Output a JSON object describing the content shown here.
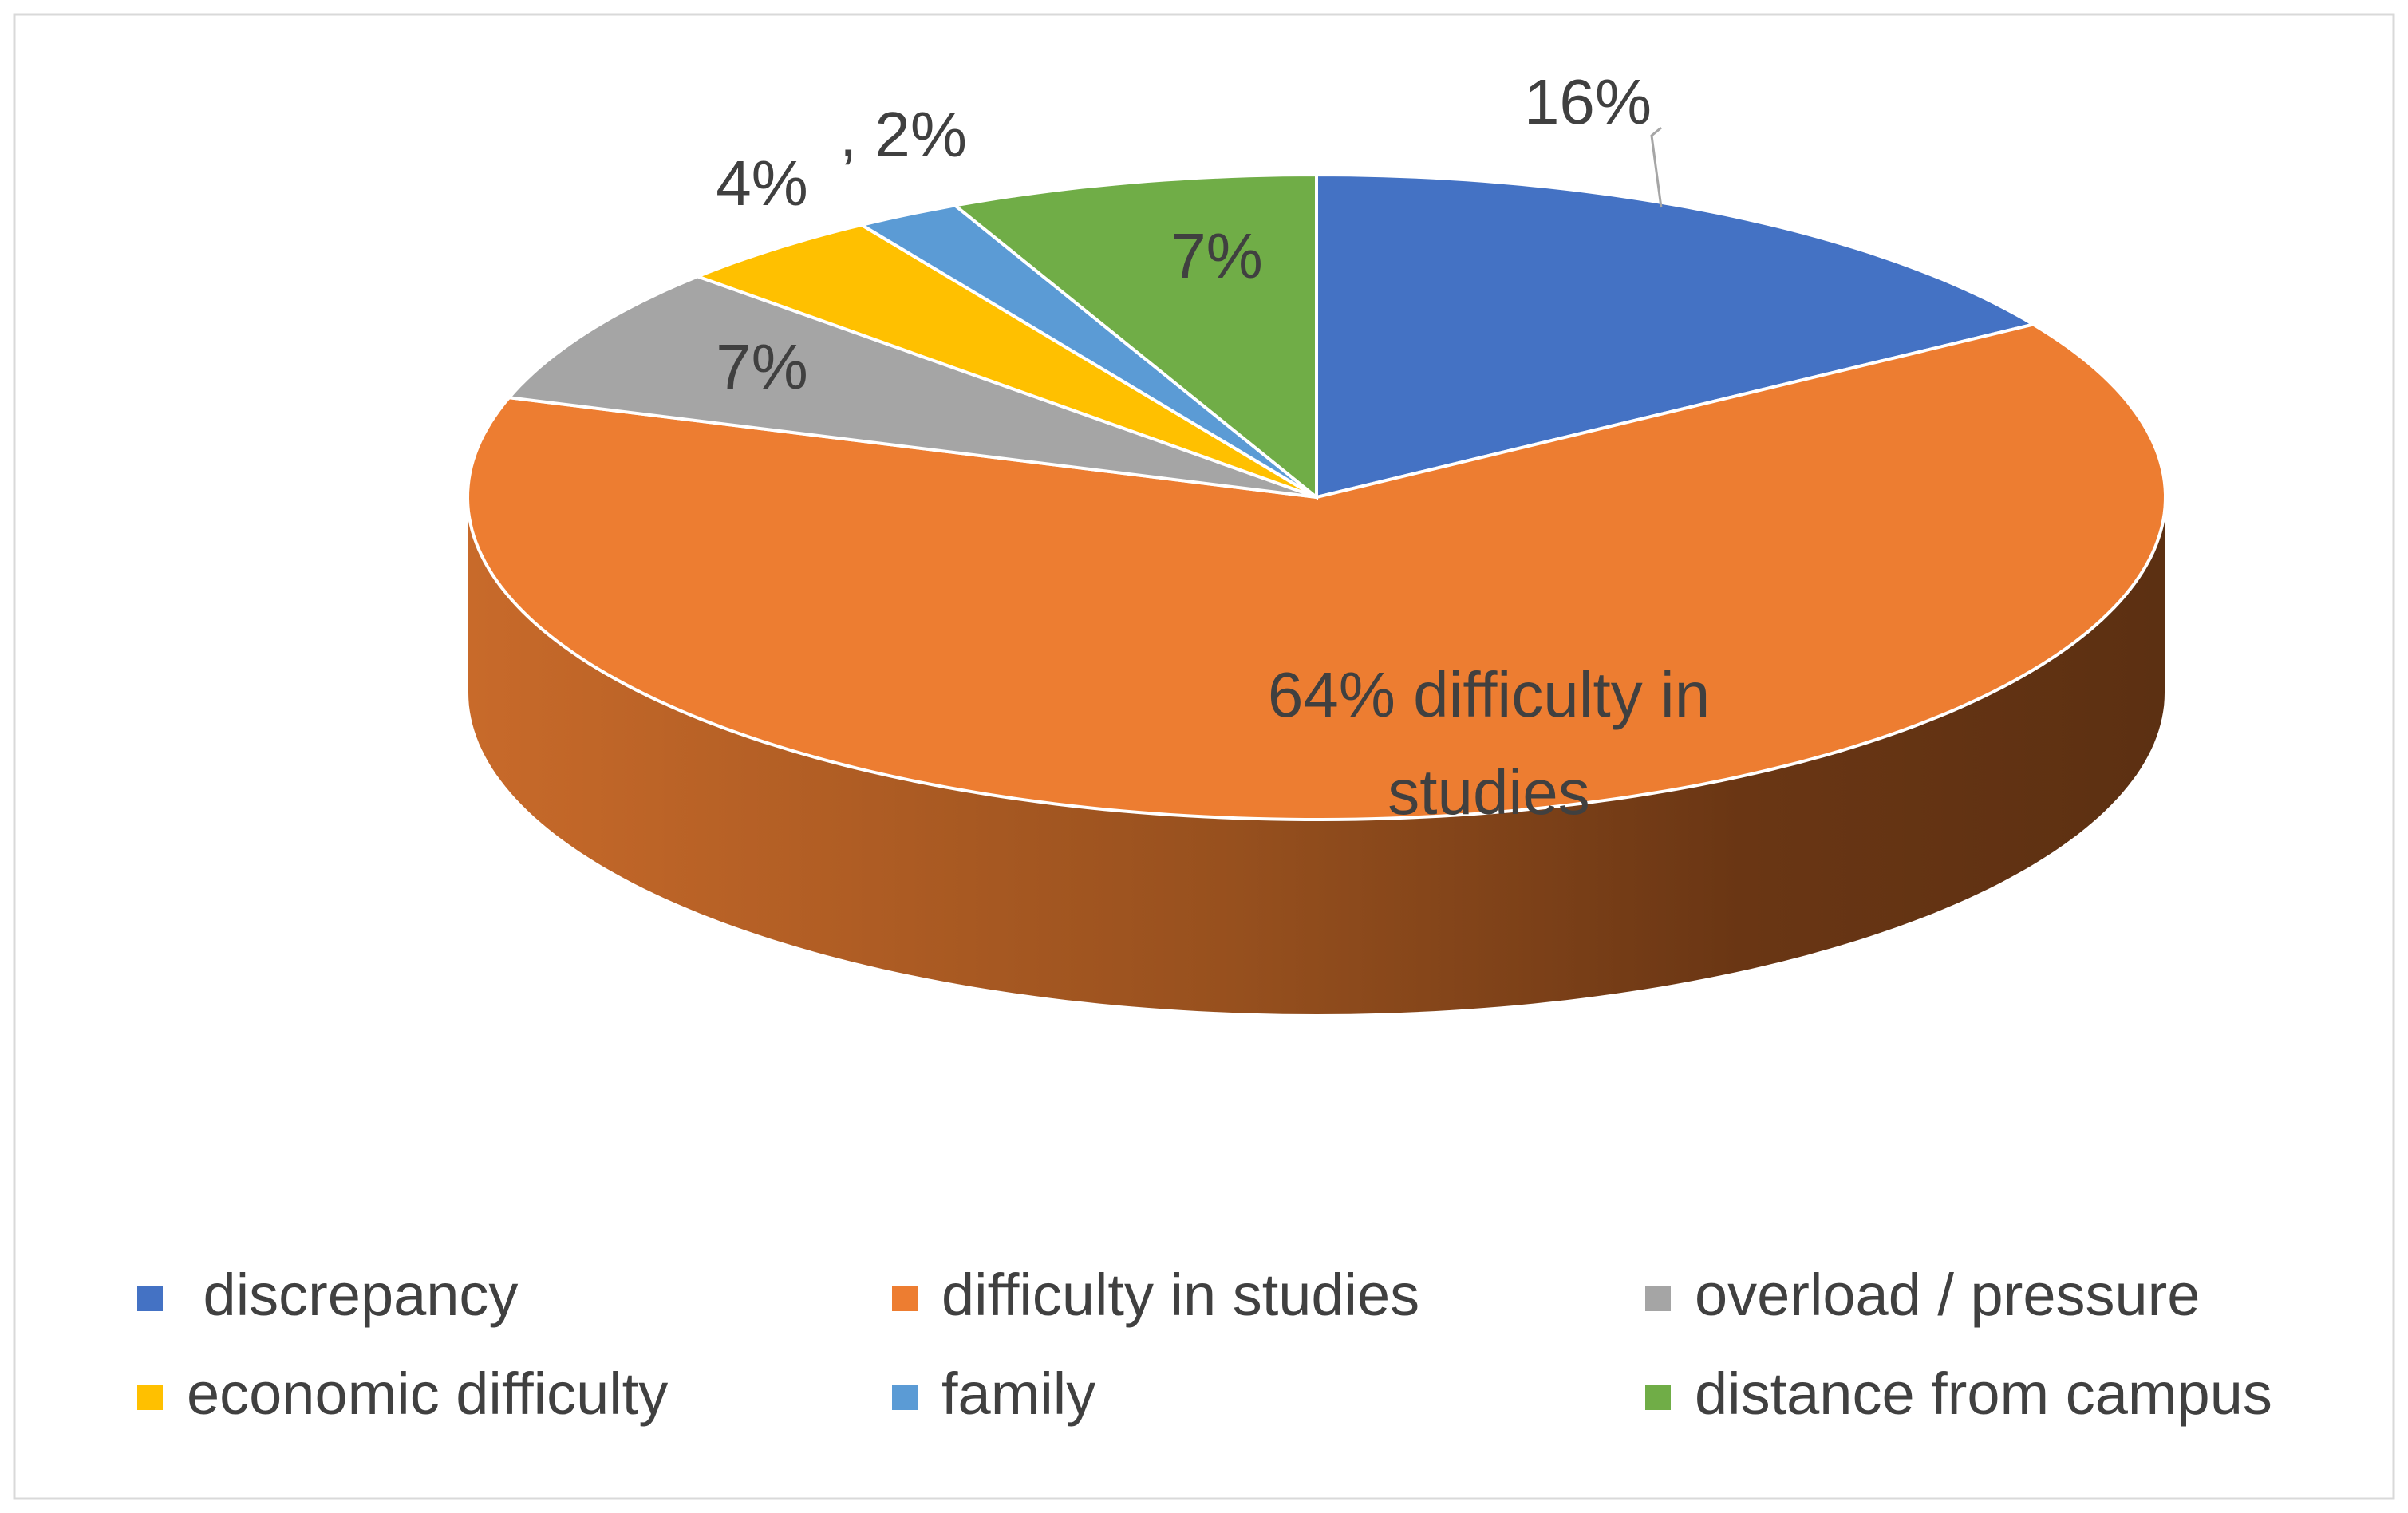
{
  "chart_data": {
    "type": "pie",
    "style": "3d",
    "title": "",
    "slices": [
      {
        "name": "discrepancy",
        "legend_label": " discrepancy",
        "value": 16,
        "data_label": "16%",
        "color": "#4472C4"
      },
      {
        "name": "difficulty in studies",
        "legend_label": "difficulty in studies",
        "value": 64,
        "data_label": "64% difficulty in studies",
        "data_label_lines": [
          "64% difficulty in",
          "studies"
        ],
        "color": "#ED7D31"
      },
      {
        "name": "overload / pressure",
        "legend_label": "overload / pressure",
        "value": 7,
        "data_label": "7%",
        "color": "#A5A5A5"
      },
      {
        "name": "economic difficulty",
        "legend_label": "economic difficulty",
        "value": 4,
        "data_label": "4%",
        "color": "#FFC000"
      },
      {
        "name": "family",
        "legend_label": "family",
        "value": 2,
        "data_label": ", 2%",
        "color": "#5B9BD5"
      },
      {
        "name": "distance from campus",
        "legend_label": "distance from campus",
        "value": 7,
        "data_label": "7%",
        "color": "#70AD47"
      }
    ],
    "legend_position": "bottom"
  }
}
